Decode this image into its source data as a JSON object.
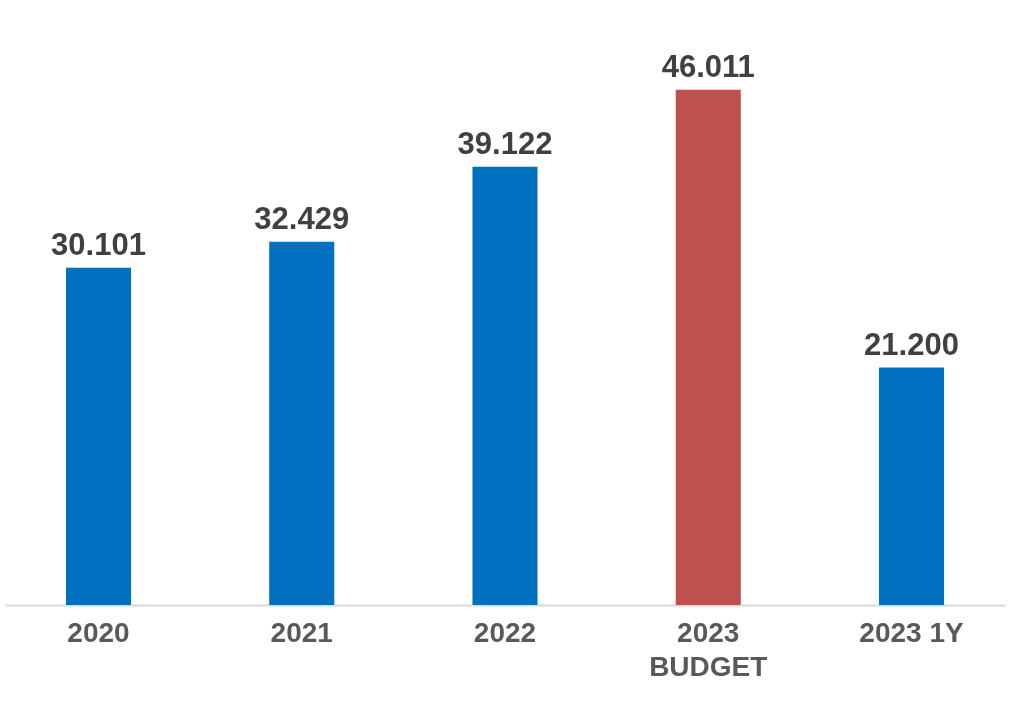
{
  "chart_data": {
    "type": "bar",
    "categories": [
      "2020",
      "2021",
      "2022",
      "2023\nBUDGET",
      "2023 1Y"
    ],
    "values": [
      30.101,
      32.429,
      39.122,
      46.011,
      21.2
    ],
    "colors": [
      "#0070c0",
      "#0070c0",
      "#0070c0",
      "#c0504d",
      "#0070c0"
    ],
    "value_labels": [
      "30.101",
      "32.429",
      "39.122",
      "46.011",
      "21.200"
    ],
    "grid": false
  }
}
